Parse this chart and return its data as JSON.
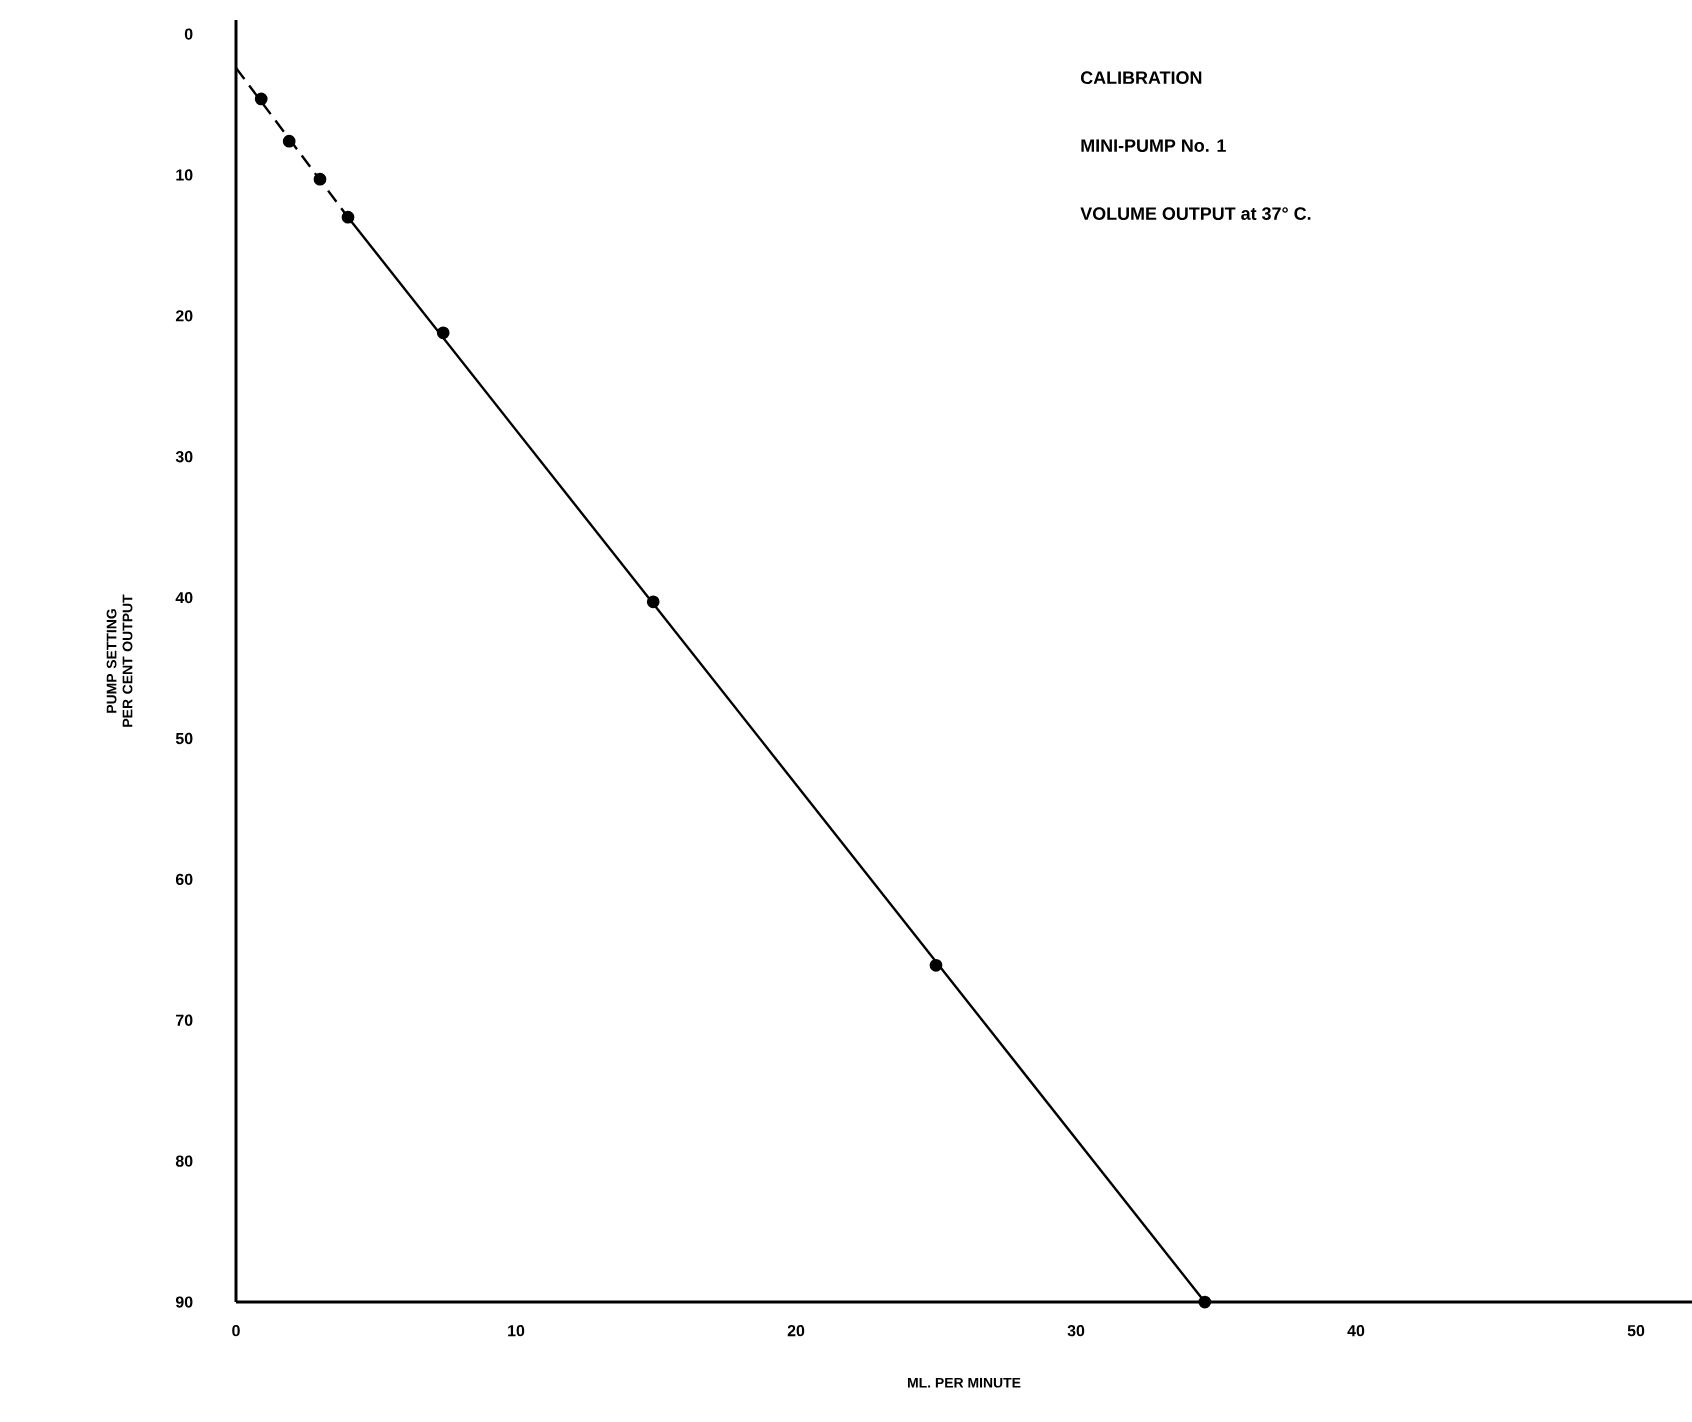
{
  "chart_data": {
    "type": "scatter",
    "title": "CALIBRATION",
    "subtitle": "MINI-PUMP No. 1",
    "annotations": [
      "VOLUME OUTPUT at 37° C."
    ],
    "xlabel": "ML. PER MINUTE",
    "ylabel": "PUMP SETTING PER CENT OUTPUT",
    "xlim": [
      0,
      52
    ],
    "ylim": [
      90,
      -1
    ],
    "xticks": [
      0,
      10,
      20,
      30,
      40,
      50
    ],
    "yticks": [
      0,
      10,
      20,
      30,
      40,
      50,
      60,
      70,
      80,
      90
    ],
    "series": [
      {
        "type": "line",
        "color": "#000000",
        "line_style": "dashed",
        "marker": "none",
        "x": [
          0,
          4
        ],
        "values": [
          2.4,
          13
        ]
      },
      {
        "type": "line",
        "color": "#000000",
        "line_style": "solid",
        "marker": "none",
        "x": [
          4,
          34.6
        ],
        "values": [
          13,
          90
        ]
      },
      {
        "color": "#000000",
        "marker": "circle",
        "x": [
          0.9,
          1.9,
          3.0,
          4.0,
          7.4,
          14.9,
          25.0,
          34.6
        ],
        "values": [
          4.6,
          7.6,
          10.3,
          13.0,
          21.2,
          40.3,
          66.1,
          90
        ]
      }
    ]
  }
}
